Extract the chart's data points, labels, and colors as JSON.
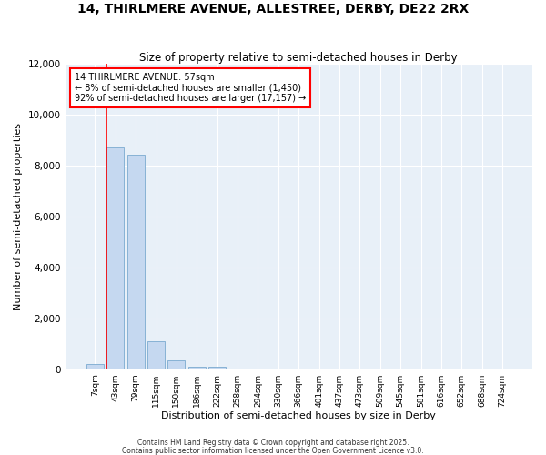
{
  "title": "14, THIRLMERE AVENUE, ALLESTREE, DERBY, DE22 2RX",
  "subtitle": "Size of property relative to semi-detached houses in Derby",
  "xlabel": "Distribution of semi-detached houses by size in Derby",
  "ylabel": "Number of semi-detached properties",
  "bar_color": "#c5d8f0",
  "bar_edgecolor": "#7aaad0",
  "background_color": "#ffffff",
  "plot_bg_color": "#e8f0f8",
  "grid_color": "#ffffff",
  "categories": [
    "7sqm",
    "43sqm",
    "79sqm",
    "115sqm",
    "150sqm",
    "186sqm",
    "222sqm",
    "258sqm",
    "294sqm",
    "330sqm",
    "366sqm",
    "401sqm",
    "437sqm",
    "473sqm",
    "509sqm",
    "545sqm",
    "581sqm",
    "616sqm",
    "652sqm",
    "688sqm",
    "724sqm"
  ],
  "values": [
    200,
    8700,
    8400,
    1100,
    350,
    100,
    80,
    0,
    0,
    0,
    0,
    0,
    0,
    0,
    0,
    0,
    0,
    0,
    0,
    0,
    0
  ],
  "ylim": [
    0,
    12000
  ],
  "yticks": [
    0,
    2000,
    4000,
    6000,
    8000,
    10000,
    12000
  ],
  "red_line_index": 1,
  "annotation_text": "14 THIRLMERE AVENUE: 57sqm\n← 8% of semi-detached houses are smaller (1,450)\n92% of semi-detached houses are larger (17,157) →",
  "footnote1": "Contains HM Land Registry data © Crown copyright and database right 2025.",
  "footnote2": "Contains public sector information licensed under the Open Government Licence v3.0."
}
